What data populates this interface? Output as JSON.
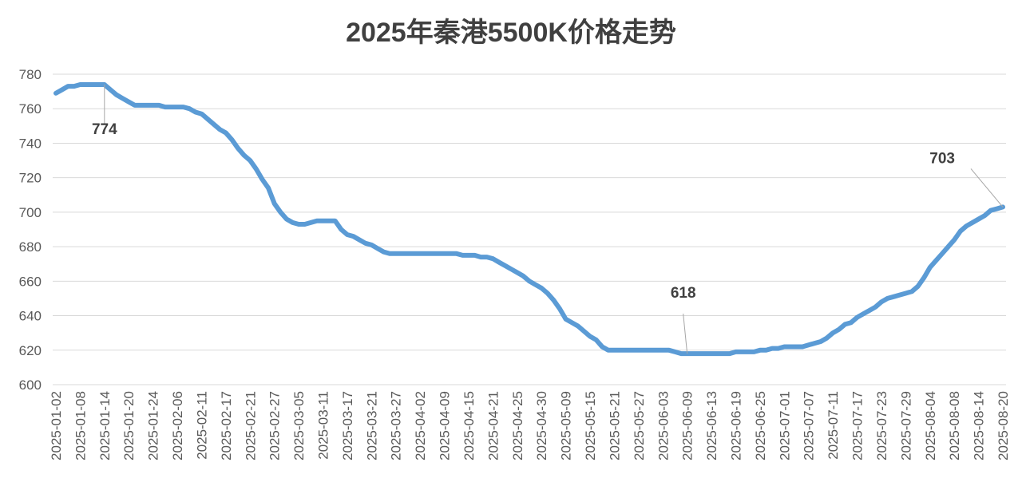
{
  "chart_data": {
    "type": "line",
    "title": "2025年秦港5500K价格走势",
    "categories": [
      "2025-01-02",
      null,
      null,
      null,
      "2025-01-08",
      null,
      null,
      null,
      "2025-01-14",
      null,
      null,
      null,
      "2025-01-20",
      null,
      null,
      null,
      "2025-01-24",
      null,
      null,
      null,
      "2025-02-06",
      null,
      null,
      null,
      "2025-02-11",
      null,
      null,
      null,
      "2025-02-17",
      null,
      null,
      null,
      "2025-02-21",
      null,
      null,
      null,
      "2025-02-27",
      null,
      null,
      null,
      "2025-03-05",
      null,
      null,
      null,
      "2025-03-11",
      null,
      null,
      null,
      "2025-03-17",
      null,
      null,
      null,
      "2025-03-21",
      null,
      null,
      null,
      "2025-03-27",
      null,
      null,
      null,
      "2025-04-02",
      null,
      null,
      null,
      "2025-04-09",
      null,
      null,
      null,
      "2025-04-15",
      null,
      null,
      null,
      "2025-04-21",
      null,
      null,
      null,
      "2025-04-25",
      null,
      null,
      null,
      "2025-04-30",
      null,
      null,
      null,
      "2025-05-09",
      null,
      null,
      null,
      "2025-05-15",
      null,
      null,
      null,
      "2025-05-21",
      null,
      null,
      null,
      "2025-05-27",
      null,
      null,
      null,
      "2025-06-03",
      null,
      null,
      null,
      "2025-06-09",
      null,
      null,
      null,
      "2025-06-13",
      null,
      null,
      null,
      "2025-06-19",
      null,
      null,
      null,
      "2025-06-25",
      null,
      null,
      null,
      "2025-07-01",
      null,
      null,
      null,
      "2025-07-07",
      null,
      null,
      null,
      "2025-07-11",
      null,
      null,
      null,
      "2025-07-17",
      null,
      null,
      null,
      "2025-07-23",
      null,
      null,
      null,
      "2025-07-29",
      null,
      null,
      null,
      "2025-08-04",
      null,
      null,
      null,
      "2025-08-08",
      null,
      null,
      null,
      "2025-08-14",
      null,
      null,
      null,
      "2025-08-20"
    ],
    "series": [
      {
        "color": "#5b9bd5",
        "values": [
          769,
          771,
          773,
          773,
          774,
          774,
          774,
          774,
          774,
          771,
          768,
          766,
          764,
          762,
          762,
          762,
          762,
          762,
          761,
          761,
          761,
          761,
          760,
          758,
          757,
          754,
          751,
          748,
          746,
          742,
          737,
          733,
          730,
          725,
          719,
          714,
          705,
          700,
          696,
          694,
          693,
          693,
          694,
          695,
          695,
          695,
          695,
          690,
          687,
          686,
          684,
          682,
          681,
          679,
          677,
          676,
          676,
          676,
          676,
          676,
          676,
          676,
          676,
          676,
          676,
          676,
          676,
          675,
          675,
          675,
          674,
          674,
          673,
          671,
          669,
          667,
          665,
          663,
          660,
          658,
          656,
          653,
          649,
          644,
          638,
          636,
          634,
          631,
          628,
          626,
          622,
          620,
          620,
          620,
          620,
          620,
          620,
          620,
          620,
          620,
          620,
          620,
          619,
          618,
          618,
          618,
          618,
          618,
          618,
          618,
          618,
          618,
          619,
          619,
          619,
          619,
          620,
          620,
          621,
          621,
          622,
          622,
          622,
          622,
          623,
          624,
          625,
          627,
          630,
          632,
          635,
          636,
          639,
          641,
          643,
          645,
          648,
          650,
          651,
          652,
          653,
          654,
          657,
          662,
          668,
          672,
          676,
          680,
          684,
          689,
          692,
          694,
          696,
          698,
          701,
          702,
          703
        ]
      }
    ],
    "labeled_points": [
      8,
      104,
      156
    ],
    "ylim": [
      600,
      780
    ],
    "yticks": [
      600,
      620,
      640,
      660,
      680,
      700,
      720,
      740,
      760,
      780
    ],
    "grid": true
  }
}
